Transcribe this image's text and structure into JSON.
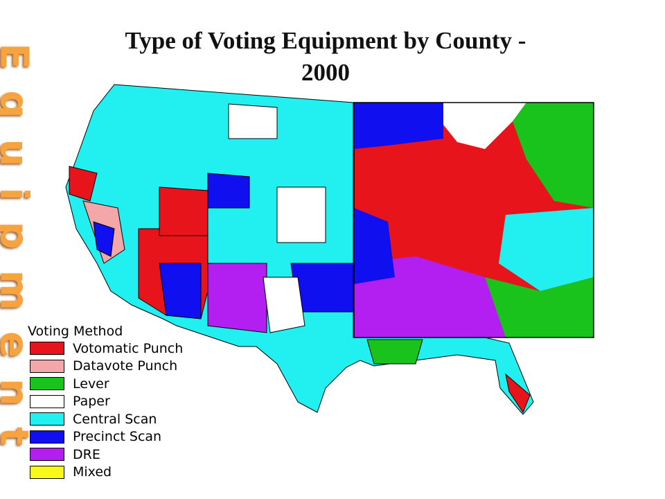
{
  "slide": {
    "title": "Type of Voting Equipment by County - 2000",
    "side_text": "Equipment",
    "legend": {
      "title": "Voting Method",
      "items": [
        {
          "name": "Votomatic Punch",
          "color": "#e8141c"
        },
        {
          "name": "Datavote Punch",
          "color": "#f4a7a9"
        },
        {
          "name": "Lever",
          "color": "#19c31c"
        },
        {
          "name": "Paper",
          "color": "#ffffff"
        },
        {
          "name": "Central Scan",
          "color": "#22f0f0"
        },
        {
          "name": "Precinct Scan",
          "color": "#0f0ff0"
        },
        {
          "name": "DRE",
          "color": "#b31ff0"
        },
        {
          "name": "Mixed",
          "color": "#f8f81a"
        }
      ]
    }
  }
}
